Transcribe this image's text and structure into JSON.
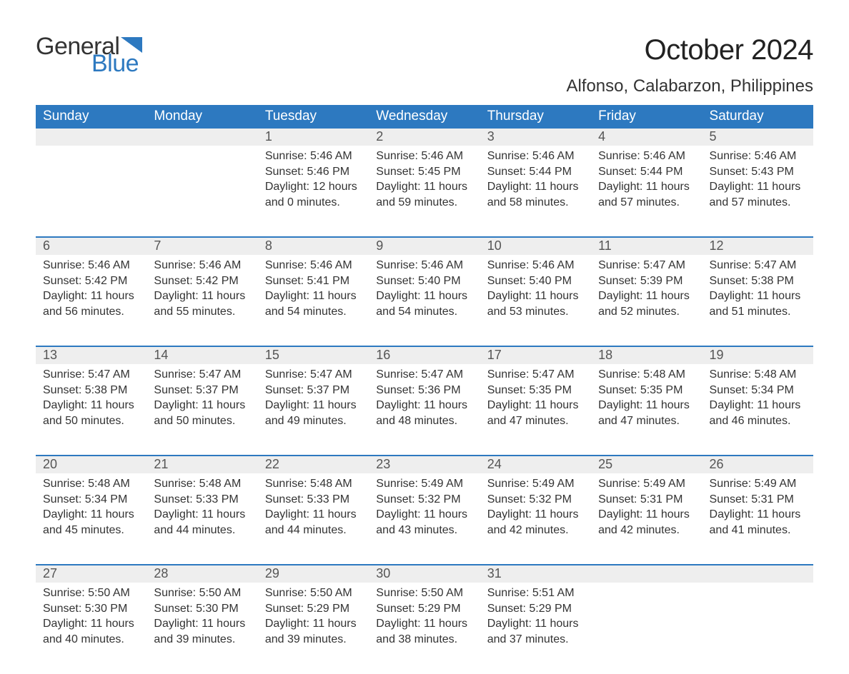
{
  "logo": {
    "general": "General",
    "blue": "Blue",
    "triangle_color": "#2d79c0"
  },
  "title": "October 2024",
  "location": "Alfonso, Calabarzon, Philippines",
  "colors": {
    "header_bg": "#2d79c0",
    "header_text": "#ffffff",
    "daynum_bg": "#eeeeee",
    "daynum_text": "#555555",
    "body_text": "#333333",
    "rule": "#2d79c0",
    "page_bg": "#ffffff"
  },
  "fonts": {
    "title_size": 40,
    "location_size": 24,
    "dayheader_size": 19,
    "daynum_size": 18,
    "body_size": 16
  },
  "day_headers": [
    "Sunday",
    "Monday",
    "Tuesday",
    "Wednesday",
    "Thursday",
    "Friday",
    "Saturday"
  ],
  "weeks": [
    [
      null,
      null,
      {
        "n": "1",
        "sunrise": "5:46 AM",
        "sunset": "5:46 PM",
        "daylight": "12 hours and 0 minutes."
      },
      {
        "n": "2",
        "sunrise": "5:46 AM",
        "sunset": "5:45 PM",
        "daylight": "11 hours and 59 minutes."
      },
      {
        "n": "3",
        "sunrise": "5:46 AM",
        "sunset": "5:44 PM",
        "daylight": "11 hours and 58 minutes."
      },
      {
        "n": "4",
        "sunrise": "5:46 AM",
        "sunset": "5:44 PM",
        "daylight": "11 hours and 57 minutes."
      },
      {
        "n": "5",
        "sunrise": "5:46 AM",
        "sunset": "5:43 PM",
        "daylight": "11 hours and 57 minutes."
      }
    ],
    [
      {
        "n": "6",
        "sunrise": "5:46 AM",
        "sunset": "5:42 PM",
        "daylight": "11 hours and 56 minutes."
      },
      {
        "n": "7",
        "sunrise": "5:46 AM",
        "sunset": "5:42 PM",
        "daylight": "11 hours and 55 minutes."
      },
      {
        "n": "8",
        "sunrise": "5:46 AM",
        "sunset": "5:41 PM",
        "daylight": "11 hours and 54 minutes."
      },
      {
        "n": "9",
        "sunrise": "5:46 AM",
        "sunset": "5:40 PM",
        "daylight": "11 hours and 54 minutes."
      },
      {
        "n": "10",
        "sunrise": "5:46 AM",
        "sunset": "5:40 PM",
        "daylight": "11 hours and 53 minutes."
      },
      {
        "n": "11",
        "sunrise": "5:47 AM",
        "sunset": "5:39 PM",
        "daylight": "11 hours and 52 minutes."
      },
      {
        "n": "12",
        "sunrise": "5:47 AM",
        "sunset": "5:38 PM",
        "daylight": "11 hours and 51 minutes."
      }
    ],
    [
      {
        "n": "13",
        "sunrise": "5:47 AM",
        "sunset": "5:38 PM",
        "daylight": "11 hours and 50 minutes."
      },
      {
        "n": "14",
        "sunrise": "5:47 AM",
        "sunset": "5:37 PM",
        "daylight": "11 hours and 50 minutes."
      },
      {
        "n": "15",
        "sunrise": "5:47 AM",
        "sunset": "5:37 PM",
        "daylight": "11 hours and 49 minutes."
      },
      {
        "n": "16",
        "sunrise": "5:47 AM",
        "sunset": "5:36 PM",
        "daylight": "11 hours and 48 minutes."
      },
      {
        "n": "17",
        "sunrise": "5:47 AM",
        "sunset": "5:35 PM",
        "daylight": "11 hours and 47 minutes."
      },
      {
        "n": "18",
        "sunrise": "5:48 AM",
        "sunset": "5:35 PM",
        "daylight": "11 hours and 47 minutes."
      },
      {
        "n": "19",
        "sunrise": "5:48 AM",
        "sunset": "5:34 PM",
        "daylight": "11 hours and 46 minutes."
      }
    ],
    [
      {
        "n": "20",
        "sunrise": "5:48 AM",
        "sunset": "5:34 PM",
        "daylight": "11 hours and 45 minutes."
      },
      {
        "n": "21",
        "sunrise": "5:48 AM",
        "sunset": "5:33 PM",
        "daylight": "11 hours and 44 minutes."
      },
      {
        "n": "22",
        "sunrise": "5:48 AM",
        "sunset": "5:33 PM",
        "daylight": "11 hours and 44 minutes."
      },
      {
        "n": "23",
        "sunrise": "5:49 AM",
        "sunset": "5:32 PM",
        "daylight": "11 hours and 43 minutes."
      },
      {
        "n": "24",
        "sunrise": "5:49 AM",
        "sunset": "5:32 PM",
        "daylight": "11 hours and 42 minutes."
      },
      {
        "n": "25",
        "sunrise": "5:49 AM",
        "sunset": "5:31 PM",
        "daylight": "11 hours and 42 minutes."
      },
      {
        "n": "26",
        "sunrise": "5:49 AM",
        "sunset": "5:31 PM",
        "daylight": "11 hours and 41 minutes."
      }
    ],
    [
      {
        "n": "27",
        "sunrise": "5:50 AM",
        "sunset": "5:30 PM",
        "daylight": "11 hours and 40 minutes."
      },
      {
        "n": "28",
        "sunrise": "5:50 AM",
        "sunset": "5:30 PM",
        "daylight": "11 hours and 39 minutes."
      },
      {
        "n": "29",
        "sunrise": "5:50 AM",
        "sunset": "5:29 PM",
        "daylight": "11 hours and 39 minutes."
      },
      {
        "n": "30",
        "sunrise": "5:50 AM",
        "sunset": "5:29 PM",
        "daylight": "11 hours and 38 minutes."
      },
      {
        "n": "31",
        "sunrise": "5:51 AM",
        "sunset": "5:29 PM",
        "daylight": "11 hours and 37 minutes."
      },
      null,
      null
    ]
  ],
  "labels": {
    "sunrise": "Sunrise: ",
    "sunset": "Sunset: ",
    "daylight": "Daylight: "
  }
}
